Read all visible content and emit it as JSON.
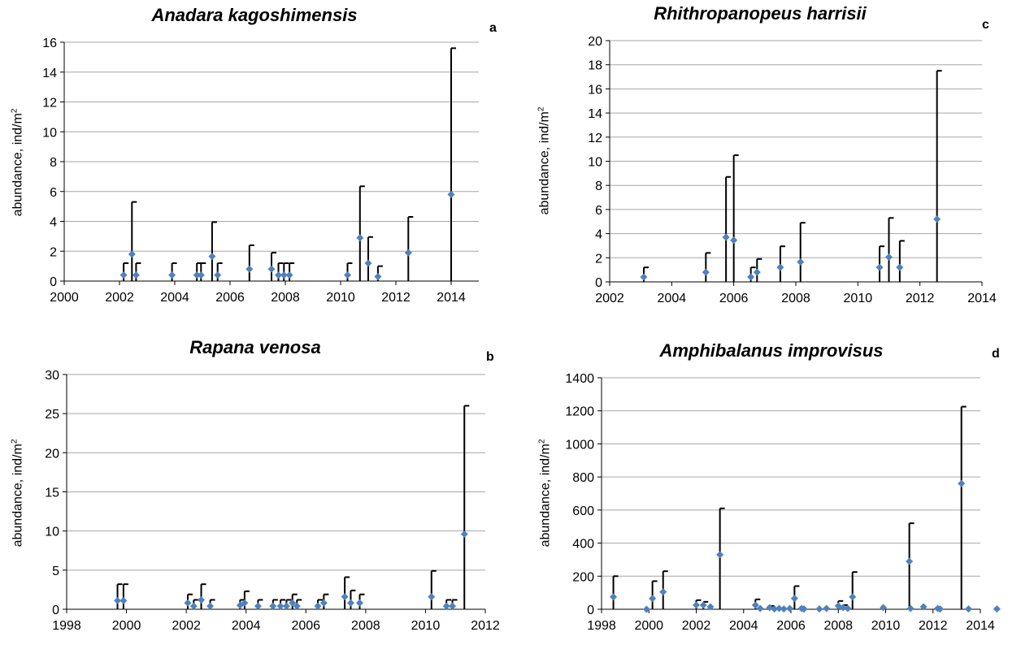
{
  "colors": {
    "marker": "#4F81BD",
    "grid": "#A6A6A6",
    "axis": "#000000"
  },
  "chart_data": [
    {
      "id": "a",
      "type": "scatter",
      "title": "Anadara kagoshimensis",
      "panel_label": "a",
      "ylabel": "abundance, ind/m",
      "ylabel_sup": "2",
      "xlim": [
        2000,
        2015
      ],
      "xticks": [
        2000,
        2002,
        2004,
        2006,
        2008,
        2010,
        2012,
        2014
      ],
      "xtick_labels": [
        "2000",
        "2002",
        "2004",
        "2006",
        "2008",
        "2010",
        "2012",
        "2014"
      ],
      "ylim": [
        0,
        16
      ],
      "yticks": [
        0,
        2,
        4,
        6,
        8,
        10,
        12,
        14,
        16
      ],
      "ytick_labels": [
        "0",
        "2",
        "4",
        "6",
        "8",
        "10",
        "12",
        "14",
        "16"
      ],
      "grid": true,
      "legend": "none",
      "points": [
        {
          "x": 2002.15,
          "y": 0.4,
          "err": 1.2
        },
        {
          "x": 2002.45,
          "y": 1.8,
          "err": 5.3
        },
        {
          "x": 2002.6,
          "y": 0.4,
          "err": 1.2
        },
        {
          "x": 2003.9,
          "y": 0.4,
          "err": 1.2
        },
        {
          "x": 2004.8,
          "y": 0.4,
          "err": 1.2
        },
        {
          "x": 2004.95,
          "y": 0.4,
          "err": 1.2
        },
        {
          "x": 2005.35,
          "y": 1.65,
          "err": 3.95
        },
        {
          "x": 2005.55,
          "y": 0.4,
          "err": 1.2
        },
        {
          "x": 2006.7,
          "y": 0.8,
          "err": 2.4
        },
        {
          "x": 2007.5,
          "y": 0.8,
          "err": 1.9
        },
        {
          "x": 2007.75,
          "y": 0.4,
          "err": 1.2
        },
        {
          "x": 2007.95,
          "y": 0.4,
          "err": 1.2
        },
        {
          "x": 2008.15,
          "y": 0.4,
          "err": 1.2
        },
        {
          "x": 2010.25,
          "y": 0.4,
          "err": 1.2
        },
        {
          "x": 2010.7,
          "y": 2.9,
          "err": 6.35
        },
        {
          "x": 2011.0,
          "y": 1.2,
          "err": 2.95
        },
        {
          "x": 2011.35,
          "y": 0.3,
          "err": 1.0
        },
        {
          "x": 2012.45,
          "y": 1.9,
          "err": 4.3
        },
        {
          "x": 2014.0,
          "y": 5.8,
          "err": 15.6
        }
      ]
    },
    {
      "id": "c",
      "type": "scatter",
      "title": "Rhithropanopeus harrisii",
      "panel_label": "c",
      "ylabel": "abundance, ind/m",
      "ylabel_sup": "2",
      "xlim": [
        2002,
        2014
      ],
      "xticks": [
        2002,
        2004,
        2006,
        2008,
        2010,
        2012,
        2014
      ],
      "xtick_labels": [
        "2002",
        "2004",
        "2006",
        "2008",
        "2010",
        "2012",
        "2014"
      ],
      "ylim": [
        0,
        20
      ],
      "yticks": [
        0,
        2,
        4,
        6,
        8,
        10,
        12,
        14,
        16,
        18,
        20
      ],
      "ytick_labels": [
        "0",
        "2",
        "4",
        "6",
        "8",
        "10",
        "12",
        "14",
        "16",
        "18",
        "20"
      ],
      "grid": true,
      "legend": "none",
      "points": [
        {
          "x": 2003.1,
          "y": 0.4,
          "err": 1.2
        },
        {
          "x": 2005.1,
          "y": 0.8,
          "err": 2.4
        },
        {
          "x": 2005.75,
          "y": 3.7,
          "err": 8.7
        },
        {
          "x": 2006.0,
          "y": 3.45,
          "err": 10.5
        },
        {
          "x": 2006.55,
          "y": 0.4,
          "err": 1.2
        },
        {
          "x": 2006.75,
          "y": 0.8,
          "err": 1.9
        },
        {
          "x": 2007.5,
          "y": 1.2,
          "err": 2.95
        },
        {
          "x": 2008.15,
          "y": 1.65,
          "err": 4.9
        },
        {
          "x": 2010.7,
          "y": 1.2,
          "err": 2.95
        },
        {
          "x": 2011.0,
          "y": 2.05,
          "err": 5.3
        },
        {
          "x": 2011.35,
          "y": 1.2,
          "err": 3.4
        },
        {
          "x": 2012.55,
          "y": 5.2,
          "err": 17.5
        }
      ]
    },
    {
      "id": "b",
      "type": "scatter",
      "title": "Rapana venosa",
      "panel_label": "b",
      "ylabel": "abundance, ind/m",
      "ylabel_sup": "2",
      "xlim": [
        1998,
        2012
      ],
      "xticks": [
        1998,
        2000,
        2002,
        2004,
        2006,
        2008,
        2010,
        2012
      ],
      "xtick_labels": [
        "1998",
        "2000",
        "2002",
        "2004",
        "2006",
        "2008",
        "2010",
        "2012"
      ],
      "ylim": [
        0,
        30
      ],
      "yticks": [
        0,
        5,
        10,
        15,
        20,
        25,
        30
      ],
      "ytick_labels": [
        "0",
        "5",
        "10",
        "15",
        "20",
        "25",
        "30"
      ],
      "grid": true,
      "legend": "none",
      "points": [
        {
          "x": 1999.7,
          "y": 1.1,
          "err": 3.2
        },
        {
          "x": 1999.9,
          "y": 1.1,
          "err": 3.2
        },
        {
          "x": 2002.05,
          "y": 0.8,
          "err": 1.9
        },
        {
          "x": 2002.25,
          "y": 0.4,
          "err": 1.2
        },
        {
          "x": 2002.5,
          "y": 1.2,
          "err": 3.2
        },
        {
          "x": 2002.8,
          "y": 0.4,
          "err": 1.2
        },
        {
          "x": 2003.8,
          "y": 0.5,
          "err": 1.2
        },
        {
          "x": 2003.95,
          "y": 0.8,
          "err": 2.3
        },
        {
          "x": 2004.4,
          "y": 0.4,
          "err": 1.2
        },
        {
          "x": 2004.9,
          "y": 0.4,
          "err": 1.2
        },
        {
          "x": 2005.15,
          "y": 0.4,
          "err": 1.2
        },
        {
          "x": 2005.35,
          "y": 0.4,
          "err": 1.2
        },
        {
          "x": 2005.55,
          "y": 0.8,
          "err": 1.9
        },
        {
          "x": 2005.7,
          "y": 0.4,
          "err": 1.2
        },
        {
          "x": 2006.4,
          "y": 0.4,
          "err": 1.2
        },
        {
          "x": 2006.6,
          "y": 0.8,
          "err": 1.9
        },
        {
          "x": 2007.3,
          "y": 1.6,
          "err": 4.1
        },
        {
          "x": 2007.5,
          "y": 0.8,
          "err": 2.4
        },
        {
          "x": 2007.8,
          "y": 0.8,
          "err": 1.9
        },
        {
          "x": 2010.2,
          "y": 1.6,
          "err": 4.9
        },
        {
          "x": 2010.7,
          "y": 0.4,
          "err": 1.2
        },
        {
          "x": 2010.9,
          "y": 0.4,
          "err": 1.2
        },
        {
          "x": 2011.3,
          "y": 9.6,
          "err": 26.0
        }
      ]
    },
    {
      "id": "d",
      "type": "scatter",
      "title": "Amphibalanus improvisus",
      "panel_label": "d",
      "ylabel": "abundance, ind/m",
      "ylabel_sup": "2",
      "xlim": [
        1998,
        2014
      ],
      "xticks": [
        1998,
        2000,
        2002,
        2004,
        2006,
        2008,
        2010,
        2012,
        2014
      ],
      "xtick_labels": [
        "1998",
        "2000",
        "2002",
        "2004",
        "2006",
        "2008",
        "2010",
        "2012",
        "2014"
      ],
      "ylim": [
        0,
        1400
      ],
      "yticks": [
        0,
        200,
        400,
        600,
        800,
        1000,
        1200,
        1400
      ],
      "ytick_labels": [
        "0",
        "200",
        "400",
        "600",
        "800",
        "1000",
        "1200",
        "1400"
      ],
      "grid": true,
      "legend": "none",
      "points": [
        {
          "x": 1998.5,
          "y": 75,
          "err": 200
        },
        {
          "x": 1999.9,
          "y": 0,
          "err": null
        },
        {
          "x": 2000.15,
          "y": 65,
          "err": 170
        },
        {
          "x": 2000.6,
          "y": 105,
          "err": 230
        },
        {
          "x": 2002.0,
          "y": 25,
          "err": 55
        },
        {
          "x": 2002.3,
          "y": 25,
          "err": 45
        },
        {
          "x": 2002.6,
          "y": 15,
          "err": null
        },
        {
          "x": 2003.0,
          "y": 330,
          "err": 610
        },
        {
          "x": 2004.5,
          "y": 25,
          "err": 60
        },
        {
          "x": 2004.7,
          "y": 5,
          "err": null
        },
        {
          "x": 2005.1,
          "y": 10,
          "err": 20
        },
        {
          "x": 2005.3,
          "y": 2,
          "err": null
        },
        {
          "x": 2005.5,
          "y": 5,
          "err": null
        },
        {
          "x": 2005.7,
          "y": 2,
          "err": null
        },
        {
          "x": 2005.95,
          "y": 5,
          "err": null
        },
        {
          "x": 2006.15,
          "y": 65,
          "err": 140
        },
        {
          "x": 2006.45,
          "y": 5,
          "err": null
        },
        {
          "x": 2006.55,
          "y": 2,
          "err": null
        },
        {
          "x": 2007.2,
          "y": 2,
          "err": null
        },
        {
          "x": 2007.5,
          "y": 5,
          "err": null
        },
        {
          "x": 2008.0,
          "y": 20,
          "err": 50
        },
        {
          "x": 2008.2,
          "y": 10,
          "err": 25
        },
        {
          "x": 2008.4,
          "y": 5,
          "err": null
        },
        {
          "x": 2008.6,
          "y": 75,
          "err": 225
        },
        {
          "x": 2009.9,
          "y": 10,
          "err": null
        },
        {
          "x": 2011.0,
          "y": 290,
          "err": 520
        },
        {
          "x": 2011.05,
          "y": 5,
          "err": null
        },
        {
          "x": 2011.6,
          "y": 15,
          "err": null
        },
        {
          "x": 2012.2,
          "y": 5,
          "err": null
        },
        {
          "x": 2012.3,
          "y": 2,
          "err": null
        },
        {
          "x": 2013.2,
          "y": 760,
          "err": 1225
        },
        {
          "x": 2013.5,
          "y": 2,
          "err": null
        },
        {
          "x": 2014.7,
          "y": 2,
          "err": null
        }
      ]
    }
  ]
}
